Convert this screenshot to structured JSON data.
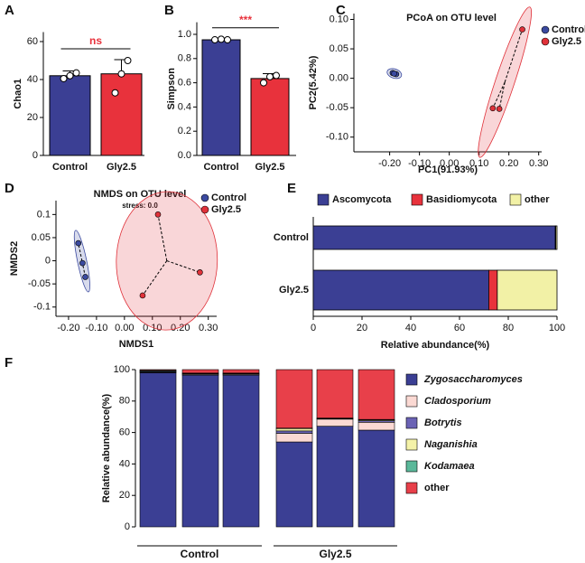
{
  "chart_data": [
    {
      "type": "bar",
      "panel": "A",
      "ylabel": "Chao1",
      "categories": [
        "Control",
        "Gly2.5"
      ],
      "values": [
        42,
        43
      ],
      "errors": [
        2.5,
        7.5
      ],
      "points": [
        [
          40.5,
          42,
          43.5
        ],
        [
          33,
          43,
          50
        ]
      ],
      "colors": [
        "#3b3f94",
        "#e8323c"
      ],
      "annotation": "ns",
      "annotation_color": "#e8323c",
      "ylim": [
        0,
        65
      ],
      "yticks": [
        0,
        20,
        40,
        60
      ]
    },
    {
      "type": "bar",
      "panel": "B",
      "ylabel": "Simpson",
      "categories": [
        "Control",
        "Gly2.5"
      ],
      "values": [
        0.955,
        0.635
      ],
      "errors": [
        0.01,
        0.04
      ],
      "points": [
        [
          0.955,
          0.96,
          0.955
        ],
        [
          0.6,
          0.65,
          0.66
        ]
      ],
      "colors": [
        "#3b3f94",
        "#e8323c"
      ],
      "annotation": "***",
      "annotation_color": "#e8323c",
      "ylim": [
        0,
        1.1
      ],
      "yticks": [
        {
          "value": 0,
          "label": "0.0"
        },
        0.2,
        0.4,
        0.6,
        0.8,
        {
          "value": 1,
          "label": "1.0"
        }
      ]
    },
    {
      "type": "scatter",
      "panel": "C",
      "title": "PCoA on OTU level",
      "xlabel": "PC1(91.93%)",
      "ylabel": "PC2(5.42%)",
      "series": [
        {
          "name": "Control",
          "color": "#3b4aa0",
          "x": [
            -0.19,
            -0.178,
            -0.185
          ],
          "y": [
            0.009,
            0.007,
            0.008
          ]
        },
        {
          "name": "Gly2.5",
          "color": "#e0323a",
          "x": [
            0.245,
            0.146,
            0.168
          ],
          "y": [
            0.083,
            -0.051,
            -0.052
          ]
        }
      ],
      "xlim": [
        -0.32,
        0.31
      ],
      "xticks": [
        {
          "value": -0.2,
          "label": "-0.20"
        },
        {
          "value": -0.1,
          "label": "-0.10"
        },
        {
          "value": 0,
          "label": "0.00"
        },
        {
          "value": 0.1,
          "label": "0.10"
        },
        {
          "value": 0.2,
          "label": "0.20"
        },
        {
          "value": 0.3,
          "label": "0.30"
        }
      ],
      "ylim": [
        -0.125,
        0.11
      ],
      "yticks": [
        {
          "value": 0.1,
          "label": "0.10"
        },
        0.05,
        {
          "value": 0,
          "label": "0.00"
        },
        -0.05,
        {
          "value": -0.1,
          "label": "-0.10"
        }
      ]
    },
    {
      "type": "scatter",
      "panel": "D",
      "title": "NMDS on OTU level",
      "subtitle": "stress: 0.0",
      "xlabel": "NMDS1",
      "ylabel": "NMDS2",
      "series": [
        {
          "name": "Control",
          "color": "#3b4aa0",
          "x": [
            -0.165,
            -0.15,
            -0.14
          ],
          "y": [
            0.038,
            -0.005,
            -0.035
          ]
        },
        {
          "name": "Gly2.5",
          "color": "#e0323a",
          "x": [
            0.12,
            0.27,
            0.065
          ],
          "y": [
            0.1,
            -0.025,
            -0.075
          ]
        }
      ],
      "xlim": [
        -0.245,
        0.33
      ],
      "xticks": [
        {
          "value": -0.2,
          "label": "-0.20"
        },
        {
          "value": -0.1,
          "label": "-0.10"
        },
        {
          "value": 0,
          "label": "0.00"
        },
        {
          "value": 0.1,
          "label": "0.10"
        },
        {
          "value": 0.2,
          "label": "0.20"
        },
        {
          "value": 0.3,
          "label": "0.30"
        }
      ],
      "ylim": [
        -0.12,
        0.13
      ],
      "yticks": [
        0.1,
        0.05,
        0,
        -0.05,
        -0.1
      ]
    },
    {
      "type": "stacked_bar_h",
      "panel": "E",
      "xlabel": "Relative abundance(%)",
      "categories": [
        "Control",
        "Gly2.5"
      ],
      "series": [
        {
          "name": "Ascomycota",
          "color": "#3b3f94",
          "values": [
            99.3,
            72
          ]
        },
        {
          "name": "Basidiomycota",
          "color": "#e8323c",
          "values": [
            0.2,
            3.5
          ]
        },
        {
          "name": "other",
          "color": "#f2f1a6",
          "values": [
            0.5,
            24.5
          ]
        }
      ],
      "xlim": [
        0,
        100
      ],
      "xticks": [
        0,
        20,
        40,
        60,
        80,
        100
      ]
    },
    {
      "type": "stacked_bar",
      "panel": "F",
      "ylabel": "Relative abundance(%)",
      "categories": [
        null,
        null,
        null,
        null,
        null,
        null
      ],
      "groups": [
        "Control",
        "Gly2.5"
      ],
      "series": [
        {
          "name": "Zygosaccharomyces",
          "italic": true,
          "color": "#3b3f94",
          "values": [
            98,
            96.5,
            96.5,
            54,
            64,
            61.5
          ]
        },
        {
          "name": "Cladosporium",
          "italic": true,
          "color": "#fbd9d3",
          "values": [
            0.3,
            0.5,
            0.5,
            5.5,
            4.5,
            5
          ]
        },
        {
          "name": "Botrytis",
          "italic": true,
          "color": "#6b63b5",
          "values": [
            0.5,
            0.3,
            0.3,
            1.5,
            0.3,
            1
          ]
        },
        {
          "name": "Naganishia",
          "italic": true,
          "color": "#f4f2a8",
          "values": [
            0.2,
            0.2,
            0.2,
            1.5,
            0.2,
            0.5
          ]
        },
        {
          "name": "Kodamaea",
          "italic": true,
          "color": "#5bb89a",
          "values": [
            0.5,
            0.3,
            0.3,
            0.3,
            0.2,
            0.3
          ]
        },
        {
          "name": "other",
          "italic": false,
          "color": "#e8404a",
          "values": [
            0.5,
            2.2,
            2.2,
            37.2,
            30.8,
            31.7
          ]
        }
      ],
      "ylim": [
        0,
        100
      ],
      "yticks": [
        0,
        20,
        40,
        60,
        80,
        100
      ]
    }
  ]
}
